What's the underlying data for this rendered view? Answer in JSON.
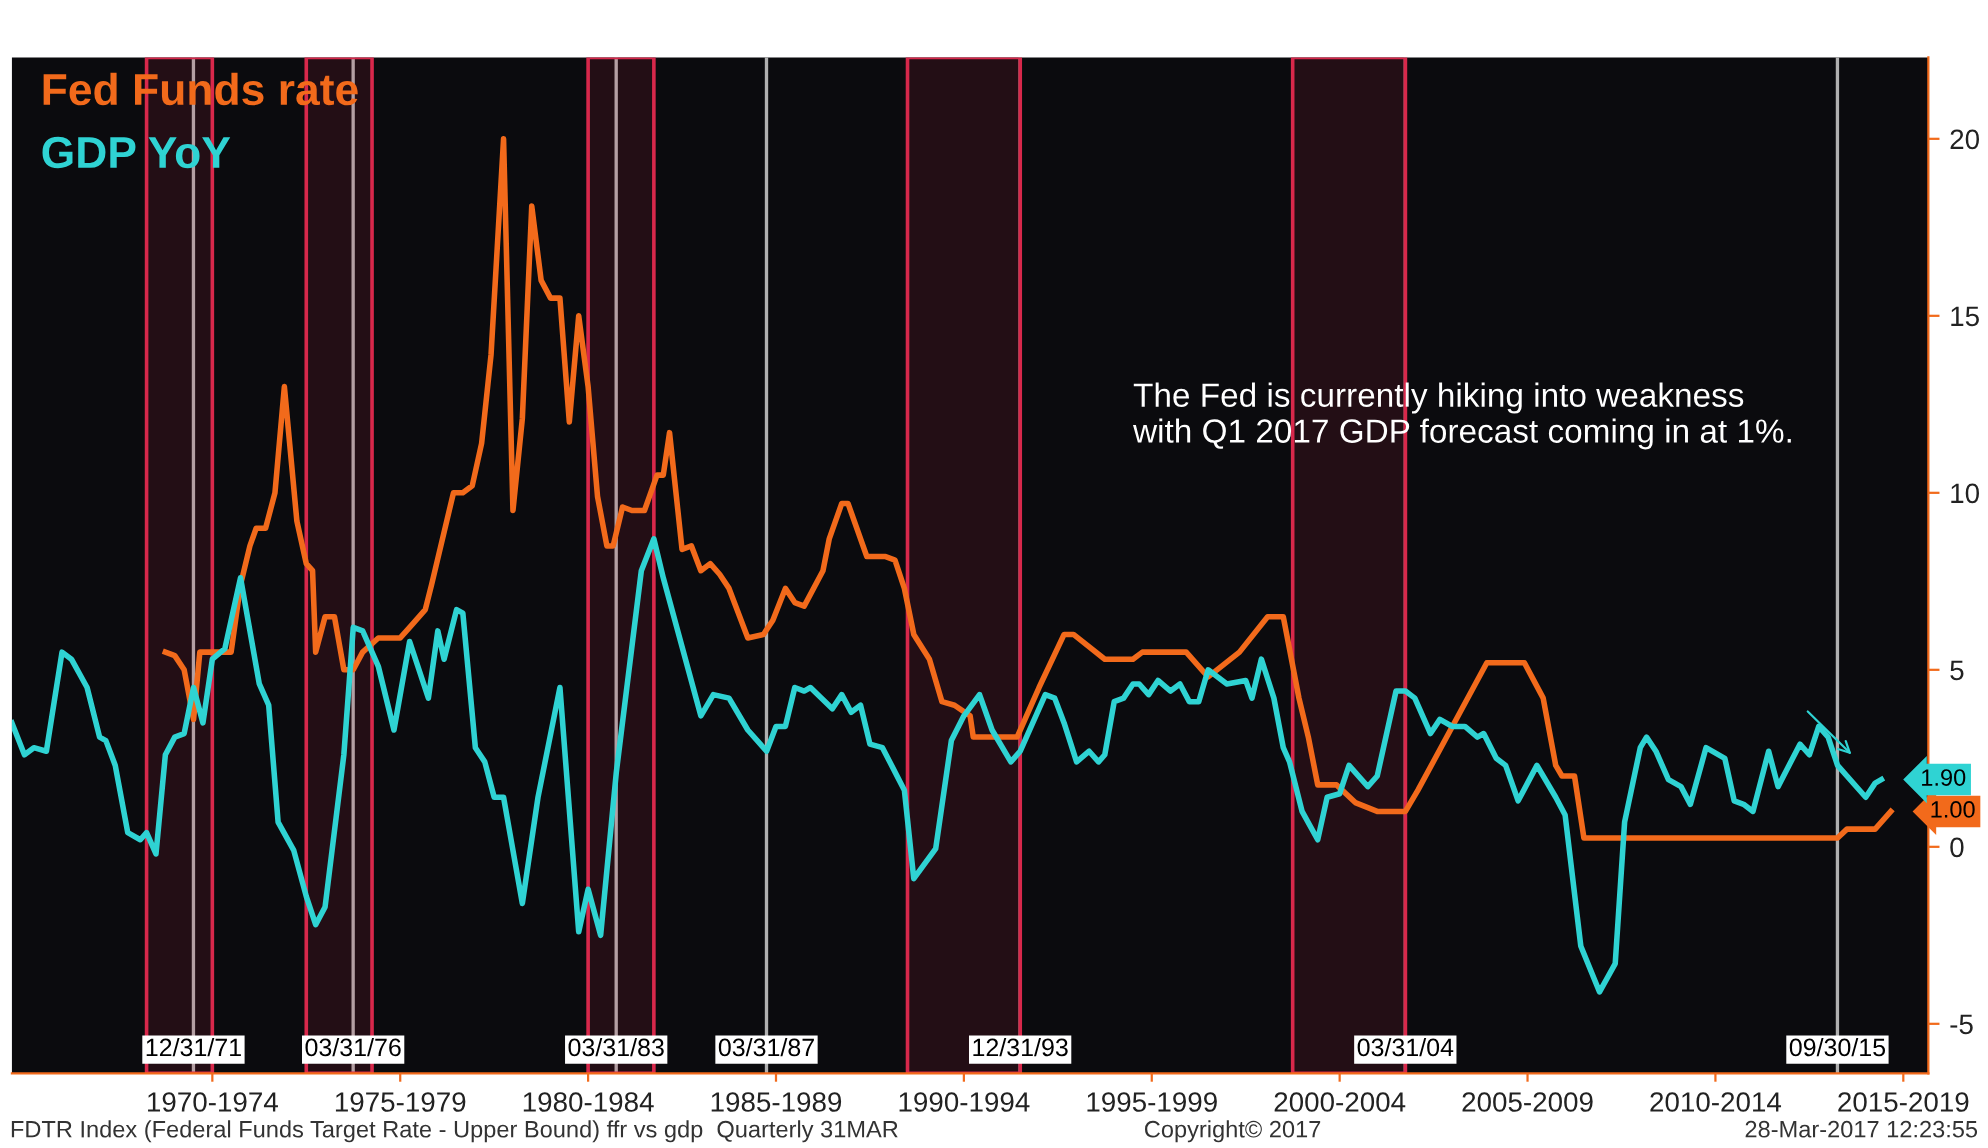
{
  "chart_data": {
    "type": "line",
    "series": [
      {
        "name": "Fed Funds rate",
        "color": "#f26a1b",
        "x": [
          "1971-04",
          "1971-07",
          "1971-10",
          "1972-01",
          "1972-03",
          "1972-07",
          "1973-01",
          "1973-04",
          "1973-07",
          "1973-09",
          "1973-12",
          "1974-03",
          "1974-06",
          "1974-10",
          "1975-01",
          "1975-03",
          "1975-04",
          "1975-07",
          "1975-10",
          "1976-01",
          "1976-04",
          "1976-07",
          "1976-12",
          "1977-07",
          "1977-11",
          "1978-03",
          "1978-05",
          "1978-12",
          "1979-03",
          "1979-06",
          "1979-09",
          "1979-12",
          "1980-04",
          "1980-07",
          "1980-10",
          "1981-01",
          "1981-04",
          "1981-07",
          "1981-10",
          "1982-01",
          "1982-04",
          "1982-07",
          "1982-10",
          "1983-01",
          "1983-03",
          "1983-06",
          "1983-09",
          "1984-01",
          "1984-05",
          "1984-07",
          "1984-09",
          "1985-01",
          "1985-04",
          "1985-07",
          "1985-10",
          "1986-01",
          "1986-04",
          "1986-10",
          "1987-03",
          "1987-06",
          "1987-10",
          "1988-01",
          "1988-04",
          "1988-10",
          "1988-12",
          "1989-04",
          "1989-06",
          "1989-12",
          "1990-06",
          "1990-09",
          "1990-12",
          "1991-03",
          "1991-08",
          "1991-12",
          "1992-04",
          "1992-09",
          "1992-10",
          "1993-12",
          "1994-07",
          "1995-03",
          "1995-06",
          "1996-04",
          "1997-01",
          "1997-04",
          "1998-06",
          "1998-11",
          "1999-01",
          "1999-11",
          "2000-08",
          "2001-01",
          "2001-06",
          "2001-09",
          "2001-12",
          "2002-06",
          "2002-12",
          "2003-07",
          "2004-04",
          "2004-08",
          "2006-06",
          "2007-06",
          "2007-12",
          "2008-04",
          "2008-06",
          "2008-10",
          "2009-01",
          "2015-10",
          "2016-01",
          "2016-10",
          "2017-03"
        ],
        "values": [
          5.5,
          5.4,
          5.0,
          3.6,
          5.5,
          5.5,
          5.5,
          7.4,
          8.5,
          9.0,
          9.0,
          10.0,
          13.0,
          9.2,
          8.0,
          7.8,
          5.5,
          6.5,
          6.5,
          5.0,
          5.0,
          5.5,
          5.9,
          5.9,
          6.3,
          6.7,
          7.4,
          10.0,
          10.0,
          10.2,
          11.4,
          13.9,
          20.0,
          9.5,
          12.1,
          18.1,
          16.0,
          15.5,
          15.5,
          12.0,
          15.0,
          13.0,
          9.9,
          8.5,
          8.5,
          9.6,
          9.5,
          9.5,
          10.5,
          10.5,
          11.7,
          8.4,
          8.5,
          7.8,
          8.0,
          7.7,
          7.3,
          5.9,
          6.0,
          6.4,
          7.3,
          6.9,
          6.8,
          7.8,
          8.7,
          9.7,
          9.7,
          8.2,
          8.2,
          8.1,
          7.3,
          6.0,
          5.3,
          4.1,
          4.0,
          3.7,
          3.1,
          3.1,
          4.5,
          6.0,
          6.0,
          5.3,
          5.3,
          5.5,
          5.5,
          5.0,
          4.8,
          5.5,
          6.5,
          6.5,
          4.2,
          3.1,
          1.75,
          1.75,
          1.25,
          1.0,
          1.0,
          1.6,
          5.2,
          5.2,
          4.2,
          2.3,
          2.0,
          2.0,
          0.25,
          0.25,
          0.5,
          0.5,
          1.0
        ]
      },
      {
        "name": "GDP YoY",
        "color": "#2fd3d3",
        "x": [
          "1967-03",
          "1967-07",
          "1967-10",
          "1968-02",
          "1968-07",
          "1968-10",
          "1969-03",
          "1969-07",
          "1969-09",
          "1969-12",
          "1970-04",
          "1970-08",
          "1970-10",
          "1971-01",
          "1971-04",
          "1971-07",
          "1971-10",
          "1972-01",
          "1972-04",
          "1972-07",
          "1972-11",
          "1973-04",
          "1973-10",
          "1974-01",
          "1974-04",
          "1974-09",
          "1975-01",
          "1975-04",
          "1975-07",
          "1976-01",
          "1976-04",
          "1976-07",
          "1976-12",
          "1977-05",
          "1977-10",
          "1978-04",
          "1978-07",
          "1978-09",
          "1979-01",
          "1979-03",
          "1979-07",
          "1979-10",
          "1980-01",
          "1980-04",
          "1980-10",
          "1981-03",
          "1981-10",
          "1982-04",
          "1982-07",
          "1982-11",
          "1983-04",
          "1983-12",
          "1984-04",
          "1984-07",
          "1985-07",
          "1985-11",
          "1986-04",
          "1986-10",
          "1987-04",
          "1987-07",
          "1987-10",
          "1988-01",
          "1988-04",
          "1988-06",
          "1989-01",
          "1989-04",
          "1989-07",
          "1989-10",
          "1990-01",
          "1990-05",
          "1990-12",
          "1991-03",
          "1991-10",
          "1992-03",
          "1992-07",
          "1992-12",
          "1993-04",
          "1993-10",
          "1994-01",
          "1994-09",
          "1994-12",
          "1995-03",
          "1995-07",
          "1995-11",
          "1996-02",
          "1996-04",
          "1996-07",
          "1996-10",
          "1997-01",
          "1997-03",
          "1997-06",
          "1997-09",
          "1998-01",
          "1998-04",
          "1998-07",
          "1998-10",
          "1999-01",
          "1999-07",
          "2000-01",
          "2000-03",
          "2000-06",
          "2000-10",
          "2001-01",
          "2001-03",
          "2001-07",
          "2001-12",
          "2002-03",
          "2002-07",
          "2002-10",
          "2003-04",
          "2003-07",
          "2004-01",
          "2004-04",
          "2004-07",
          "2004-12",
          "2005-03",
          "2005-07",
          "2005-11",
          "2006-03",
          "2006-05",
          "2006-09",
          "2006-12",
          "2007-04",
          "2007-10",
          "2008-04",
          "2008-07",
          "2008-12",
          "2009-06",
          "2009-11",
          "2010-02",
          "2010-07",
          "2010-09",
          "2010-12",
          "2011-04",
          "2011-08",
          "2011-11",
          "2012-04",
          "2012-10",
          "2013-01",
          "2013-04",
          "2013-07",
          "2013-12",
          "2014-03",
          "2014-10",
          "2015-01",
          "2015-04",
          "2015-07",
          "2015-10",
          "2016-07",
          "2016-10",
          "2016-12"
        ],
        "values": [
          3.5,
          2.6,
          2.8,
          2.7,
          5.5,
          5.3,
          4.5,
          3.1,
          3.0,
          2.3,
          0.4,
          0.2,
          0.4,
          -0.2,
          2.6,
          3.1,
          3.2,
          4.5,
          3.5,
          5.3,
          5.6,
          7.6,
          4.6,
          4.0,
          0.7,
          -0.1,
          -1.4,
          -2.2,
          -1.7,
          2.6,
          6.2,
          6.1,
          5.1,
          3.3,
          5.8,
          4.2,
          6.1,
          5.3,
          6.7,
          6.6,
          2.8,
          2.4,
          1.4,
          1.4,
          -1.6,
          1.4,
          4.5,
          -2.4,
          -1.2,
          -2.5,
          2.1,
          7.8,
          8.7,
          7.6,
          3.7,
          4.3,
          4.2,
          3.3,
          2.7,
          3.4,
          3.4,
          4.5,
          4.4,
          4.5,
          3.9,
          4.3,
          3.8,
          4.0,
          2.9,
          2.8,
          1.6,
          -0.9,
          -0.05,
          3.0,
          3.7,
          4.3,
          3.3,
          2.4,
          2.7,
          4.3,
          4.2,
          3.5,
          2.4,
          2.7,
          2.4,
          2.6,
          4.1,
          4.2,
          4.6,
          4.6,
          4.3,
          4.7,
          4.4,
          4.6,
          4.1,
          4.1,
          5.0,
          4.6,
          4.7,
          4.2,
          5.3,
          4.2,
          2.8,
          2.4,
          1.0,
          0.2,
          1.4,
          1.5,
          2.3,
          1.7,
          2.0,
          4.4,
          4.4,
          4.2,
          3.2,
          3.6,
          3.4,
          3.4,
          3.1,
          3.2,
          2.5,
          2.3,
          1.3,
          2.3,
          1.4,
          0.9,
          -2.8,
          -4.1,
          -3.3,
          0.7,
          2.8,
          3.1,
          2.7,
          1.9,
          1.7,
          1.2,
          2.8,
          2.5,
          1.3,
          1.2,
          1.0,
          2.7,
          1.7,
          2.9,
          2.6,
          3.4,
          3.1,
          2.3,
          1.4,
          1.8,
          1.9
        ]
      }
    ],
    "xlim": [
      "1967-03",
      "2018-03"
    ],
    "xticks": [
      {
        "value": "1972-07",
        "label": "1970-1974"
      },
      {
        "value": "1977-07",
        "label": "1975-1979"
      },
      {
        "value": "1982-07",
        "label": "1980-1984"
      },
      {
        "value": "1987-07",
        "label": "1985-1989"
      },
      {
        "value": "1992-07",
        "label": "1990-1994"
      },
      {
        "value": "1997-07",
        "label": "1995-1999"
      },
      {
        "value": "2002-07",
        "label": "2000-2004"
      },
      {
        "value": "2007-07",
        "label": "2005-2009"
      },
      {
        "value": "2012-07",
        "label": "2010-2014"
      },
      {
        "value": "2017-07",
        "label": "2015-2019"
      }
    ],
    "ylim": [
      -6.4,
      22.3
    ],
    "yticks": [
      -5,
      0,
      5,
      10,
      15,
      20
    ],
    "ref_lines": [
      {
        "axis": "x",
        "value": "1971-12-31",
        "label": "12/31/71",
        "color": "#b0b0b0"
      },
      {
        "axis": "x",
        "value": "1976-03-31",
        "label": "03/31/76",
        "color": "#b0b0b0"
      },
      {
        "axis": "x",
        "value": "1983-03-31",
        "label": "03/31/83",
        "color": "#b0b0b0"
      },
      {
        "axis": "x",
        "value": "1987-03-31",
        "label": "03/31/87",
        "color": "#b0b0b0"
      },
      {
        "axis": "x",
        "value": "1993-12-31",
        "label": "12/31/93",
        "color": "#b0b0b0"
      },
      {
        "axis": "x",
        "value": "2004-03-31",
        "label": "03/31/04",
        "color": "#b0b0b0"
      },
      {
        "axis": "x",
        "value": "2015-09-30",
        "label": "09/30/15",
        "color": "#b0b0b0"
      }
    ],
    "bands": [
      {
        "axis": "x",
        "from": "1970-10",
        "to": "1972-07",
        "color": "#d8284b"
      },
      {
        "axis": "x",
        "from": "1975-01",
        "to": "1976-10",
        "color": "#d8284b"
      },
      {
        "axis": "x",
        "from": "1982-07",
        "to": "1984-04",
        "color": "#d8284b"
      },
      {
        "axis": "x",
        "from": "1991-01",
        "to": "1994-01",
        "color": "#d8284b"
      },
      {
        "axis": "x",
        "from": "2001-04",
        "to": "2004-04",
        "color": "#d8284b"
      }
    ],
    "annotations": [
      "The Fed is currently hiking into weakness\nwith Q1 2017 GDP forecast coming in at 1%.",
      "FDTR Index (Federal Funds Target Rate - Upper Bound) ffr vs gdp  Quarterly 31MAR",
      "Copyright© 2017",
      "28-Mar-2017 12:23:55",
      {
        "text": "1.00",
        "x": "2017-03",
        "y": 1.0
      },
      {
        "text": "1.90",
        "x": "2016-12",
        "y": 1.9
      }
    ],
    "legend": "top left",
    "grid": false,
    "line_style": "solid",
    "marker": "none"
  }
}
